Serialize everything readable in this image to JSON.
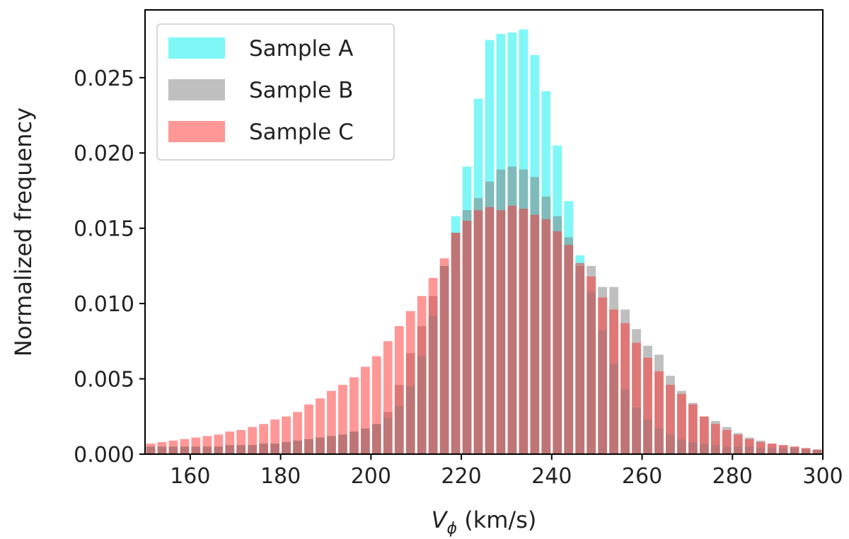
{
  "chart_data": {
    "type": "bar",
    "xlabel_main": "V",
    "xlabel_sub": "ϕ",
    "xlabel_rest": " (km/s)",
    "ylabel": "Normalized frequency",
    "xlim": [
      150,
      300
    ],
    "ylim": [
      0,
      0.0295
    ],
    "bin_width": 2.5,
    "xticks": [
      160,
      180,
      200,
      220,
      240,
      260,
      280,
      300
    ],
    "xtick_labels": [
      "160",
      "180",
      "200",
      "220",
      "240",
      "260",
      "280",
      "300"
    ],
    "yticks": [
      0,
      0.005,
      0.01,
      0.015,
      0.02,
      0.025
    ],
    "ytick_labels": [
      "0.000",
      "0.005",
      "0.010",
      "0.015",
      "0.020",
      "0.025"
    ],
    "legend_position": "upper-left",
    "x": [
      151.25,
      153.75,
      156.25,
      158.75,
      161.25,
      163.75,
      166.25,
      168.75,
      171.25,
      173.75,
      176.25,
      178.75,
      181.25,
      183.75,
      186.25,
      188.75,
      191.25,
      193.75,
      196.25,
      198.75,
      201.25,
      203.75,
      206.25,
      208.75,
      211.25,
      213.75,
      216.25,
      218.75,
      221.25,
      223.75,
      226.25,
      228.75,
      231.25,
      233.75,
      236.25,
      238.75,
      241.25,
      243.75,
      246.25,
      248.75,
      251.25,
      253.75,
      256.25,
      258.75,
      261.25,
      263.75,
      266.25,
      268.75,
      271.25,
      273.75,
      276.25,
      278.75,
      281.25,
      283.75,
      286.25,
      288.75,
      291.25,
      293.75,
      296.25,
      298.75
    ],
    "series": [
      {
        "name": "Sample A",
        "color": "#00f0f0",
        "opacity": 0.5,
        "values": [
          0.0005,
          0.0005,
          0.0005,
          0.0005,
          0.0005,
          0.0005,
          0.0005,
          0.0006,
          0.0006,
          0.0006,
          0.0007,
          0.0007,
          0.0008,
          0.0009,
          0.001,
          0.0011,
          0.0012,
          0.0013,
          0.0015,
          0.0017,
          0.002,
          0.0024,
          0.0032,
          0.0045,
          0.0065,
          0.0092,
          0.0125,
          0.0158,
          0.0191,
          0.0236,
          0.0275,
          0.0279,
          0.028,
          0.0282,
          0.0265,
          0.0241,
          0.0205,
          0.0168,
          0.0132,
          0.0108,
          0.0082,
          0.006,
          0.0043,
          0.0031,
          0.0023,
          0.0017,
          0.0013,
          0.001,
          0.0008,
          0.0007,
          0.0006,
          0.0005,
          0.0005,
          0.0005,
          0.0004,
          0.0004,
          0.0004,
          0.0004,
          0.0003,
          0.0003
        ]
      },
      {
        "name": "Sample B",
        "color": "#808080",
        "opacity": 0.5,
        "values": [
          0.0005,
          0.0005,
          0.0005,
          0.0005,
          0.0005,
          0.0005,
          0.0005,
          0.0006,
          0.0006,
          0.0006,
          0.0007,
          0.0007,
          0.0008,
          0.0009,
          0.001,
          0.0011,
          0.0012,
          0.0013,
          0.0015,
          0.0017,
          0.002,
          0.0028,
          0.0046,
          0.0067,
          0.0085,
          0.0105,
          0.0125,
          0.0147,
          0.0162,
          0.017,
          0.0181,
          0.0189,
          0.0191,
          0.0189,
          0.0184,
          0.0171,
          0.0158,
          0.0144,
          0.0125,
          0.0125,
          0.0111,
          0.0111,
          0.0096,
          0.0083,
          0.0072,
          0.0066,
          0.0052,
          0.0042,
          0.0034,
          0.0025,
          0.0022,
          0.0018,
          0.0014,
          0.0011,
          0.0009,
          0.0007,
          0.0006,
          0.0005,
          0.0004,
          0.0003
        ]
      },
      {
        "name": "Sample C",
        "color": "#ff3030",
        "opacity": 0.5,
        "values": [
          0.0007,
          0.0008,
          0.0009,
          0.001,
          0.0011,
          0.0012,
          0.0013,
          0.0015,
          0.0016,
          0.0018,
          0.002,
          0.0023,
          0.0025,
          0.0028,
          0.0033,
          0.0037,
          0.0042,
          0.0046,
          0.0051,
          0.0058,
          0.0065,
          0.0075,
          0.0085,
          0.0095,
          0.0105,
          0.0117,
          0.013,
          0.0147,
          0.0155,
          0.0162,
          0.0164,
          0.0162,
          0.0165,
          0.0163,
          0.0159,
          0.0156,
          0.0148,
          0.0139,
          0.0127,
          0.0118,
          0.0104,
          0.0096,
          0.0087,
          0.0074,
          0.0064,
          0.0055,
          0.0046,
          0.004,
          0.0033,
          0.0025,
          0.002,
          0.0016,
          0.0013,
          0.001,
          0.0008,
          0.0007,
          0.0006,
          0.0005,
          0.0004,
          0.0003
        ]
      }
    ]
  }
}
